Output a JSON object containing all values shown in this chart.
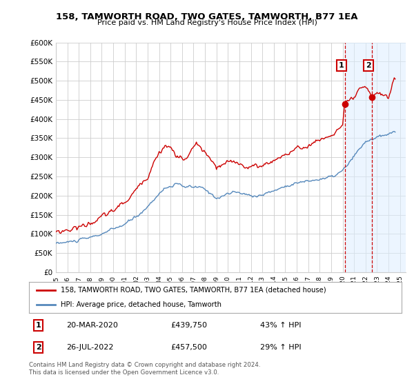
{
  "title": "158, TAMWORTH ROAD, TWO GATES, TAMWORTH, B77 1EA",
  "subtitle": "Price paid vs. HM Land Registry's House Price Index (HPI)",
  "red_label": "158, TAMWORTH ROAD, TWO GATES, TAMWORTH, B77 1EA (detached house)",
  "blue_label": "HPI: Average price, detached house, Tamworth",
  "footer": "Contains HM Land Registry data © Crown copyright and database right 2024.\nThis data is licensed under the Open Government Licence v3.0.",
  "annotation1_date": "20-MAR-2020",
  "annotation1_price": "£439,750",
  "annotation1_hpi": "43% ↑ HPI",
  "annotation2_date": "26-JUL-2022",
  "annotation2_price": "£457,500",
  "annotation2_hpi": "29% ↑ HPI",
  "ylim": [
    0,
    600000
  ],
  "yticks": [
    0,
    50000,
    100000,
    150000,
    200000,
    250000,
    300000,
    350000,
    400000,
    450000,
    500000,
    550000,
    600000
  ],
  "xlim_start": 1995.0,
  "xlim_end": 2025.5,
  "red_color": "#cc0000",
  "blue_color": "#5588bb",
  "dashed_color": "#cc0000",
  "dashed_color2": "#5588bb",
  "background_color": "#ffffff",
  "grid_color": "#cccccc",
  "sale1_x": 2020.2,
  "sale1_y": 439750,
  "sale2_x": 2022.54,
  "sale2_y": 457500,
  "vline1_x": 2020.2,
  "vline2_x": 2022.54,
  "shaded_start": 2020.2,
  "shaded_end": 2025.5
}
